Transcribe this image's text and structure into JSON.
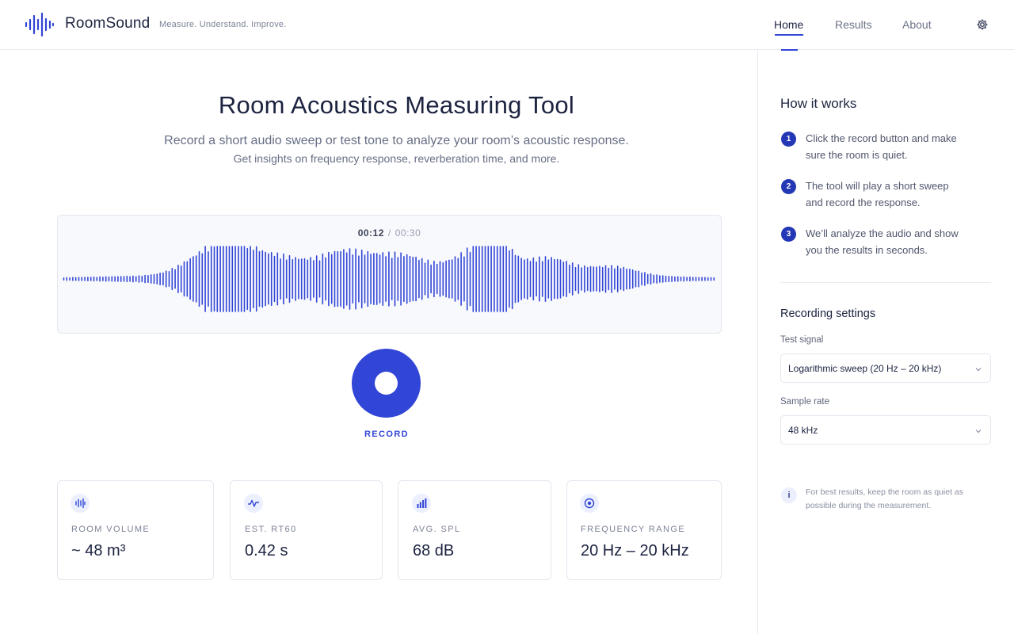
{
  "header": {
    "brand": "RoomSound",
    "tagline": "Measure. Understand. Improve.",
    "nav": [
      {
        "label": "Home",
        "active": true
      },
      {
        "label": "Results",
        "active": false
      },
      {
        "label": "About",
        "active": false
      }
    ],
    "settings_icon": "gear-icon",
    "logo_icon": "waveform-logo-icon"
  },
  "main": {
    "title": "Room Acoustics Measuring Tool",
    "subtitle_line1": "Record a short audio sweep or test tone to analyze your room’s acoustic response.",
    "subtitle_line2": "Get insights on frequency response, reverberation time, and more.",
    "timer": {
      "current": "00:12",
      "separator": "/",
      "total": "00:30"
    },
    "record_label": "RECORD",
    "metrics": [
      {
        "icon": "audio-wave-icon",
        "label": "ROOM VOLUME",
        "value": "~ 48 m³"
      },
      {
        "icon": "pulse-icon",
        "label": "EST. RT60",
        "value": "0.42 s"
      },
      {
        "icon": "bar-chart-icon",
        "label": "AVG. SPL",
        "value": "68 dB"
      },
      {
        "icon": "target-icon",
        "label": "FREQUENCY RANGE",
        "value": "20 Hz – 20 kHz"
      }
    ]
  },
  "sidebar": {
    "how_title": "How it works",
    "steps": [
      {
        "num": "1",
        "text": "Click the record button and make sure the room is quiet."
      },
      {
        "num": "2",
        "text": "The tool will play a short sweep and record the response."
      },
      {
        "num": "3",
        "text": "We’ll analyze the audio and show you the results in seconds."
      }
    ],
    "settings_title": "Recording settings",
    "test_signal": {
      "label": "Test signal",
      "value": "Logarithmic sweep (20 Hz – 20 kHz)"
    },
    "sample_rate": {
      "label": "Sample rate",
      "value": "48 kHz"
    },
    "tip": {
      "icon": "info-icon",
      "glyph": "i",
      "text": "For best results, keep the room as quiet as possible during the measurement."
    }
  },
  "colors": {
    "accent": "#3145d6",
    "text": "#1c2340",
    "muted": "#676e85"
  }
}
